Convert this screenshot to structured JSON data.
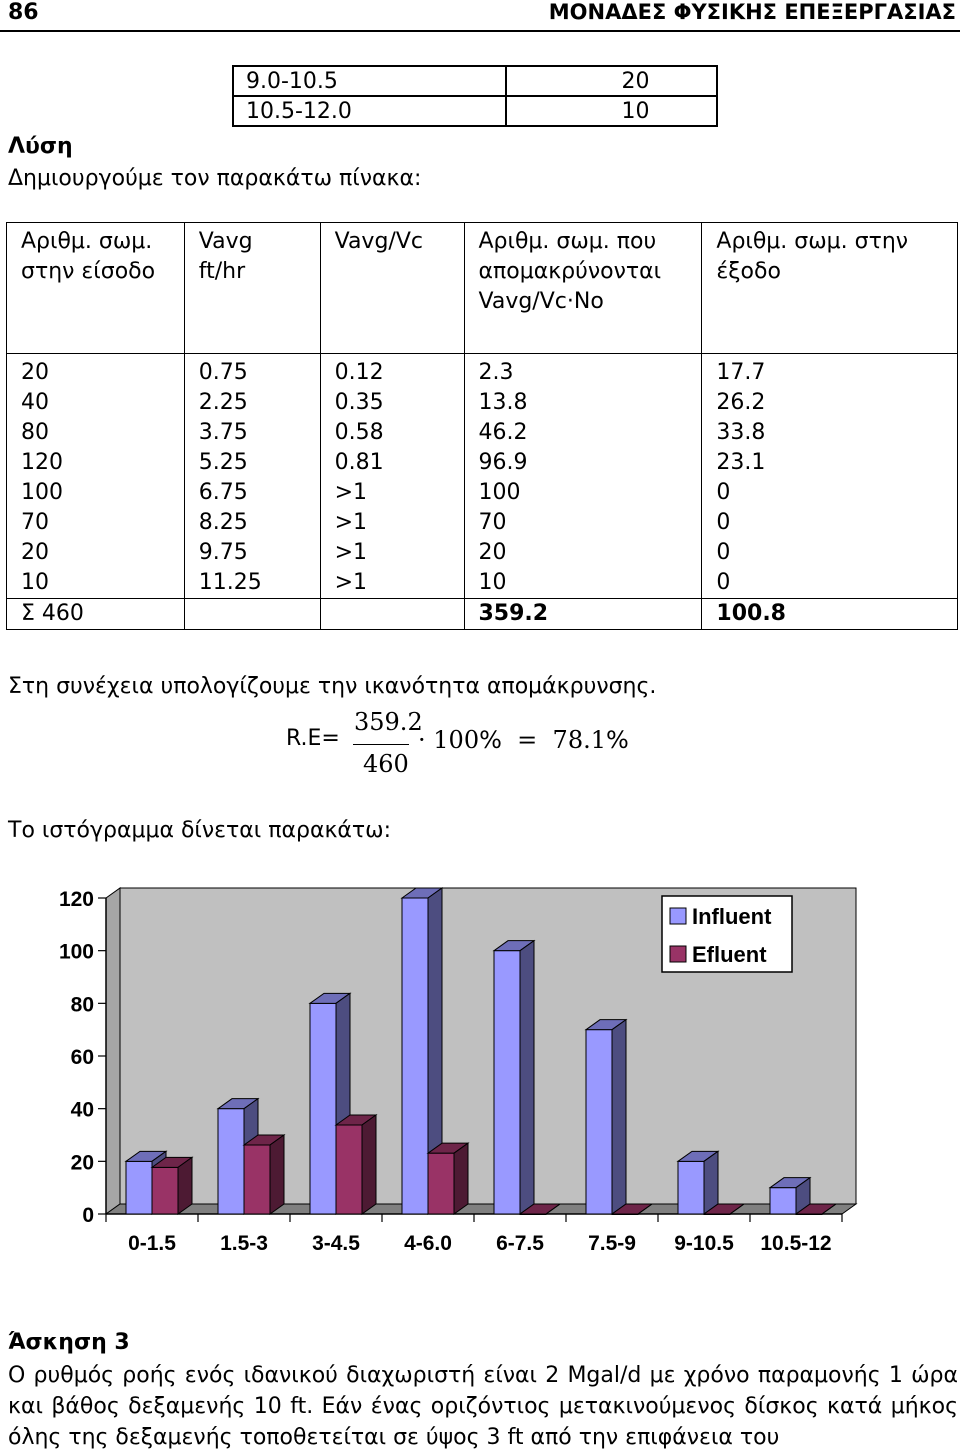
{
  "header": {
    "page_number": "86",
    "title": "ΜΟΝΑΔΕΣ ΦΥΣΙΚΗΣ ΕΠΕΞΕΡΓΑΣΙΑΣ"
  },
  "top_table": [
    [
      "9.0-10.5",
      "20"
    ],
    [
      "10.5-12.0",
      "10"
    ]
  ],
  "solution": {
    "heading": "Λύση",
    "intro": "Δημιουργούμε τον παρακάτω πίνακα:"
  },
  "main_table": {
    "headers": [
      [
        "Αριθμ. σωμ.",
        "στην είσοδο"
      ],
      [
        "Vavg",
        "ft/hr"
      ],
      [
        "Vavg/Vc"
      ],
      [
        "Αριθμ. σωμ. που",
        "απομακρύνονται",
        "Vavg/Vc·No"
      ],
      [
        "Αριθμ. σωμ. στην",
        "έξοδο"
      ]
    ],
    "rows": [
      [
        "20",
        "0.75",
        "0.12",
        "2.3",
        "17.7"
      ],
      [
        "40",
        "2.25",
        "0.35",
        "13.8",
        "26.2"
      ],
      [
        "80",
        "3.75",
        "0.58",
        "46.2",
        "33.8"
      ],
      [
        "120",
        "5.25",
        "0.81",
        "96.9",
        "23.1"
      ],
      [
        "100",
        "6.75",
        ">1",
        "100",
        "0"
      ],
      [
        "70",
        "8.25",
        ">1",
        "70",
        "0"
      ],
      [
        "20",
        "9.75",
        ">1",
        "20",
        "0"
      ],
      [
        "10",
        "11.25",
        ">1",
        "10",
        "0"
      ]
    ],
    "sum": {
      "label": "Σ 460",
      "removed": "359.2",
      "out": "100.8"
    }
  },
  "calc": {
    "intro": "Στη συνέχεια υπολογίζουμε την ικανότητα απομάκρυνσης.",
    "label": "R.E=",
    "numerator": "359.2",
    "denominator": "460",
    "dot": "·",
    "factor": "100",
    "percent": "%",
    "equals": "=",
    "result": "78.1",
    "result_percent": "%"
  },
  "histogram_intro": "Το ιστόγραμμα δίνεται παρακάτω:",
  "chart_data": {
    "type": "bar",
    "categories": [
      "0-1.5",
      "1.5-3",
      "3-4.5",
      "4-6.0",
      "6-7.5",
      "7.5-9",
      "9-10.5",
      "10.5-12"
    ],
    "series": [
      {
        "name": "Influent",
        "values": [
          20,
          40,
          80,
          120,
          100,
          70,
          20,
          10
        ],
        "color": "#9999ff"
      },
      {
        "name": "Efluent",
        "values": [
          17.7,
          26.2,
          33.8,
          23.1,
          0,
          0,
          0,
          0
        ],
        "color": "#993366"
      }
    ],
    "yticks": [
      "0",
      "20",
      "40",
      "60",
      "80",
      "100",
      "120"
    ],
    "ylim": [
      0,
      120
    ],
    "grid": false,
    "legend": "top-right",
    "style": "3d"
  },
  "exercise": {
    "heading": "Άσκηση 3",
    "text": "Ο ρυθμός ροής ενός ιδανικού διαχωριστή είναι 2 Mgal/d με χρόνο παραμονής 1 ώρα και βάθος δεξαμενής 10 ft. Εάν ένας οριζόντιος μετακινούμενος δίσκος κατά μήκος όλης της δεξαμενής τοποθετείται σε ύψος 3 ft από την επιφάνεια του"
  }
}
